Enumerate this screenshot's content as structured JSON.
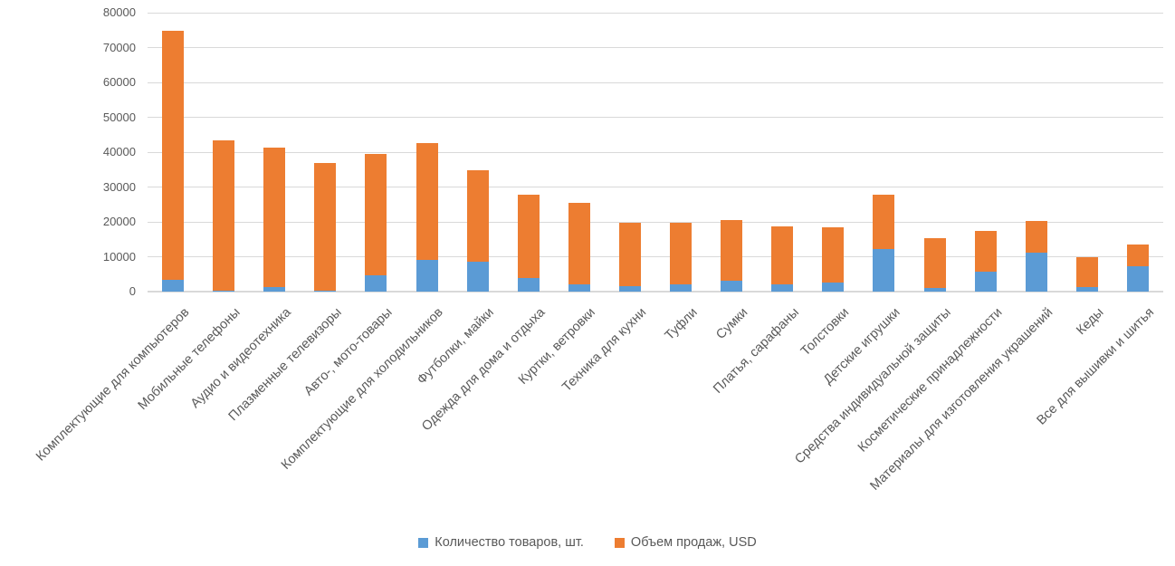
{
  "chart_data": {
    "type": "bar",
    "stacked": true,
    "title": "",
    "categories": [
      "Комплектующие для компьютеров",
      "Мобильные телефоны",
      "Аудио и видеотехника",
      "Плазменные телевизоры",
      "Авто-, мото-товары",
      "Комплектующие для холодильников",
      "Футболки, майки",
      "Одежда для дома и отдыха",
      "Куртки, ветровки",
      "Техника для кухни",
      "Туфли",
      "Сумки",
      "Платья, сарафаны",
      "Толстовки",
      "Детские игрушки",
      "Средства индивидуальной защиты",
      "Косметические принадлежности",
      "Материалы для изготовления украшений",
      "Кеды",
      "Все для вышивки и шитья"
    ],
    "series": [
      {
        "name": "Количество товаров, шт.",
        "color": "#5B9BD5",
        "values": [
          3300,
          150,
          1400,
          150,
          4800,
          9000,
          8700,
          4000,
          2000,
          1500,
          2100,
          3000,
          2200,
          2600,
          12300,
          1000,
          5700,
          11100,
          1300,
          7200
        ]
      },
      {
        "name": "Объем продаж, USD",
        "color": "#ED7D31",
        "values": [
          71400,
          43150,
          40000,
          36850,
          34700,
          33700,
          26100,
          23900,
          23400,
          18300,
          17700,
          17500,
          16400,
          15800,
          15500,
          14400,
          11600,
          9200,
          8700,
          6400
        ]
      }
    ],
    "stacked_totals": [
      74700,
      43300,
      41400,
      37000,
      39500,
      42700,
      34800,
      27900,
      25400,
      19800,
      19800,
      20500,
      18600,
      18400,
      27800,
      15400,
      17300,
      20300,
      10000,
      13600
    ],
    "ylim": [
      0,
      80000
    ],
    "yticks": [
      "0",
      "10000",
      "20000",
      "30000",
      "40000",
      "50000",
      "60000",
      "70000",
      "80000"
    ],
    "grid": true,
    "legend_position": "bottom",
    "colors": {
      "grid": "#D9D9D9",
      "axis": "#D9D9D9",
      "text": "#595959",
      "background": "#FFFFFF"
    }
  }
}
